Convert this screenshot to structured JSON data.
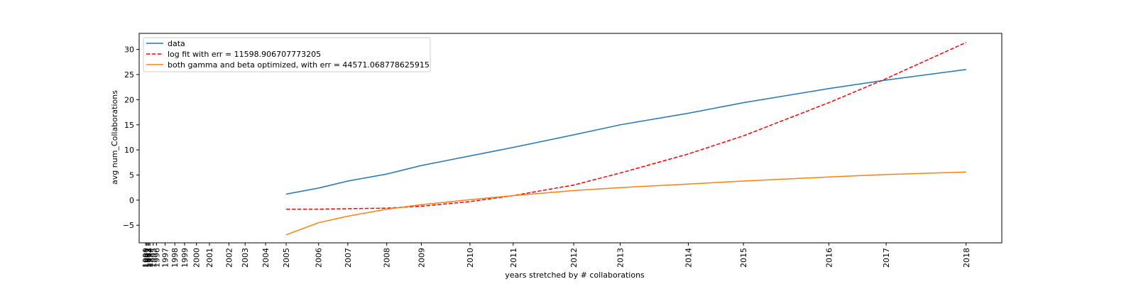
{
  "chart_data": {
    "type": "line",
    "xlabel": "years stretched by # collaborations",
    "ylabel": "avg num_Collaborations",
    "ylim": [
      -8.5,
      33.2
    ],
    "yticks": [
      -5,
      0,
      5,
      10,
      15,
      20,
      25,
      30
    ],
    "legend_position": "upper-left",
    "grid": false,
    "xticks": [
      {
        "label": "1990",
        "x": 0.0
      },
      {
        "label": "1991",
        "x": 0.05
      },
      {
        "label": "1992",
        "x": 0.1
      },
      {
        "label": "1993",
        "x": 0.15
      },
      {
        "label": "1994",
        "x": 0.2
      },
      {
        "label": "1995",
        "x": 0.35
      },
      {
        "label": "1996",
        "x": 0.5
      },
      {
        "label": "1997",
        "x": 0.9
      },
      {
        "label": "1998",
        "x": 1.35
      },
      {
        "label": "1999",
        "x": 1.8
      },
      {
        "label": "2000",
        "x": 2.35
      },
      {
        "label": "2001",
        "x": 2.95
      },
      {
        "label": "2002",
        "x": 3.85
      },
      {
        "label": "2003",
        "x": 4.6
      },
      {
        "label": "2004",
        "x": 5.55
      },
      {
        "label": "2005",
        "x": 6.5
      },
      {
        "label": "2006",
        "x": 8.0
      },
      {
        "label": "2007",
        "x": 9.35
      },
      {
        "label": "2008",
        "x": 11.15
      },
      {
        "label": "2009",
        "x": 12.75
      },
      {
        "label": "2010",
        "x": 15.0
      },
      {
        "label": "2011",
        "x": 17.0
      },
      {
        "label": "2012",
        "x": 19.8
      },
      {
        "label": "2013",
        "x": 21.95
      },
      {
        "label": "2014",
        "x": 25.1
      },
      {
        "label": "2015",
        "x": 27.65
      },
      {
        "label": "2016",
        "x": 31.6
      },
      {
        "label": "2017",
        "x": 34.25
      },
      {
        "label": "2018",
        "x": 37.95
      }
    ],
    "xlim": [
      -0.3,
      39.6
    ],
    "series": [
      {
        "name": "data",
        "color": "#1f77b4",
        "dash": "solid",
        "points": [
          [
            6.5,
            1.2
          ],
          [
            8.0,
            2.4
          ],
          [
            9.35,
            3.8
          ],
          [
            11.15,
            5.2
          ],
          [
            12.75,
            6.9
          ],
          [
            15.0,
            8.8
          ],
          [
            17.0,
            10.5
          ],
          [
            19.8,
            13.0
          ],
          [
            21.95,
            15.0
          ],
          [
            25.1,
            17.3
          ],
          [
            27.65,
            19.4
          ],
          [
            31.6,
            22.2
          ],
          [
            34.25,
            23.9
          ],
          [
            37.95,
            26.0
          ]
        ]
      },
      {
        "name": "log fit with err = 11598.906707773205",
        "color": "#ff0000",
        "dash": "dashed",
        "points": [
          [
            6.5,
            -1.8
          ],
          [
            8.0,
            -1.8
          ],
          [
            9.35,
            -1.7
          ],
          [
            11.15,
            -1.6
          ],
          [
            12.75,
            -1.2
          ],
          [
            15.0,
            -0.3
          ],
          [
            17.0,
            0.9
          ],
          [
            19.8,
            3.0
          ],
          [
            21.95,
            5.4
          ],
          [
            25.1,
            9.2
          ],
          [
            27.65,
            12.8
          ],
          [
            31.6,
            19.4
          ],
          [
            34.25,
            24.2
          ],
          [
            37.95,
            31.4
          ]
        ]
      },
      {
        "name": "both gamma and beta optimized, with err = 44571.068778625915",
        "color": "#ff7f0e",
        "dash": "solid",
        "points": [
          [
            6.5,
            -6.9
          ],
          [
            8.0,
            -4.5
          ],
          [
            9.35,
            -3.2
          ],
          [
            11.15,
            -1.8
          ],
          [
            12.75,
            -0.9
          ],
          [
            15.0,
            0.1
          ],
          [
            17.0,
            0.9
          ],
          [
            19.8,
            1.9
          ],
          [
            21.95,
            2.5
          ],
          [
            25.1,
            3.2
          ],
          [
            27.65,
            3.8
          ],
          [
            31.6,
            4.6
          ],
          [
            34.25,
            5.1
          ],
          [
            37.95,
            5.6
          ]
        ]
      }
    ]
  }
}
